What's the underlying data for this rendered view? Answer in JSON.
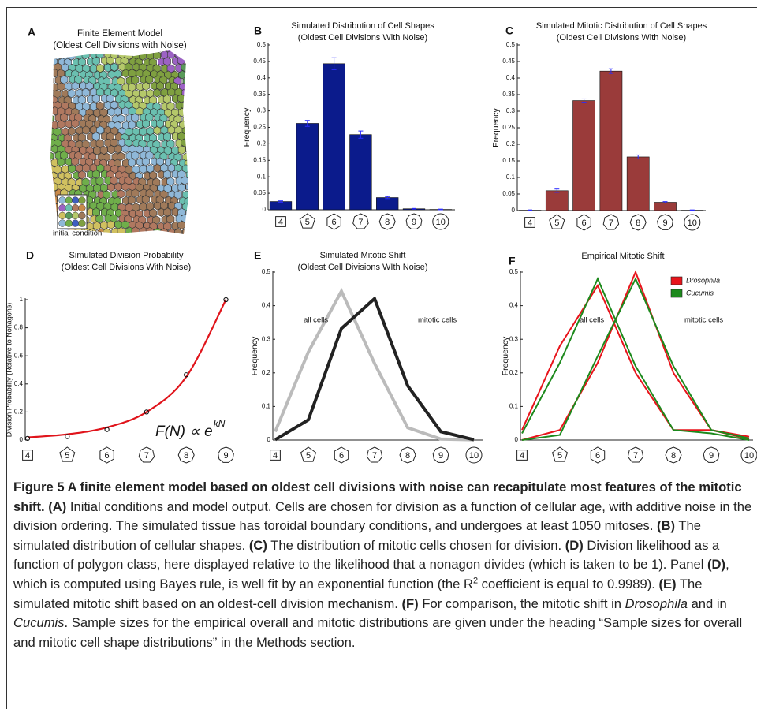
{
  "panel_a": {
    "label": "A",
    "title": "Finite Element Model",
    "subtitle": "(Oldest Cell Divisions with Noise)",
    "inset_label": "initial condition"
  },
  "chart_data": [
    {
      "type": "bar",
      "label": "B",
      "title": "Simulated Distribution of Cell Shapes",
      "subtitle": "(Oldest Cell Divisions With Noise)",
      "y_label": "Frequency",
      "categories": [
        "4",
        "5",
        "6",
        "7",
        "8",
        "9",
        "10"
      ],
      "values": [
        0.025,
        0.262,
        0.443,
        0.228,
        0.037,
        0.003,
        0.001
      ],
      "errors": [
        0.002,
        0.009,
        0.018,
        0.011,
        0.003,
        0.001,
        0.001
      ],
      "color": "#0b1b8c",
      "error_color": "#2b2bff",
      "ylim": [
        0,
        0.5
      ],
      "yticks": [
        0,
        0.05,
        0.1,
        0.15,
        0.2,
        0.25,
        0.3,
        0.35,
        0.4,
        0.45,
        0.5
      ]
    },
    {
      "type": "bar",
      "label": "C",
      "title": "Simulated Mitotic Distribution of Cell Shapes",
      "subtitle": "(Oldest Cell Divisions With Noise)",
      "y_label": "Frequency",
      "categories": [
        "4",
        "5",
        "6",
        "7",
        "8",
        "9",
        "10"
      ],
      "values": [
        0.001,
        0.06,
        0.332,
        0.421,
        0.162,
        0.025,
        0.001
      ],
      "errors": [
        0.001,
        0.005,
        0.005,
        0.007,
        0.006,
        0.002,
        0.001
      ],
      "color": "#9a3b3a",
      "error_color": "#2b2bff",
      "ylim": [
        0,
        0.5
      ],
      "yticks": [
        0,
        0.05,
        0.1,
        0.15,
        0.2,
        0.25,
        0.3,
        0.35,
        0.4,
        0.45,
        0.5
      ]
    },
    {
      "type": "fit",
      "label": "D",
      "title": "Simulated Division Probability",
      "subtitle": "(Oldest Cell Divisions With Noise)",
      "y_label": "Division Probability (Relative to Nonagons)",
      "categories": [
        "4",
        "5",
        "6",
        "7",
        "8",
        "9"
      ],
      "values": [
        0.012,
        0.025,
        0.075,
        0.2,
        0.465,
        1
      ],
      "fit": [
        0.019,
        0.041,
        0.09,
        0.2,
        0.45,
        1
      ],
      "fit_color": "#e0141b",
      "annotation": "F(N) ∝ e",
      "annotation_superscript": "kN",
      "ylim": [
        0,
        1
      ],
      "yticks": [
        0,
        0.2,
        0.4,
        0.6,
        0.8,
        1
      ]
    },
    {
      "type": "line",
      "label": "E",
      "title": "Simulated Mitotic Shift",
      "subtitle": "(Oldest Cell Divisions WIth Noise)",
      "y_label": "Frequency",
      "categories": [
        "4",
        "5",
        "6",
        "7",
        "8",
        "9",
        "10"
      ],
      "series": [
        {
          "name": "all cells",
          "color": "#bbbbbb",
          "values": [
            0.025,
            0.262,
            0.443,
            0.228,
            0.037,
            0.003,
            0.001
          ]
        },
        {
          "name": "mitotic cells",
          "color": "#222222",
          "values": [
            0.001,
            0.06,
            0.332,
            0.421,
            0.162,
            0.025,
            0.001
          ]
        }
      ],
      "ylim": [
        0,
        0.5
      ],
      "yticks": [
        0,
        0.1,
        0.2,
        0.3,
        0.4,
        0.5
      ]
    },
    {
      "type": "line",
      "label": "F",
      "title": "Empirical Mitotic Shift",
      "y_label": "Frequency",
      "annotations": [
        "all cells",
        "mitotic cells"
      ],
      "categories": [
        "4",
        "5",
        "6",
        "7",
        "8",
        "9",
        "10"
      ],
      "series": [
        {
          "name": "Drosophila",
          "color": "#e8141b",
          "values": [
            0.03,
            0.28,
            0.46,
            0.2,
            0.03,
            0.03,
            0.01
          ],
          "mitotic_values": [
            0,
            0.03,
            0.23,
            0.5,
            0.2,
            0.03,
            0.003
          ]
        },
        {
          "name": "Cucumis",
          "color": "#1d8a1d",
          "values": [
            0.02,
            0.23,
            0.48,
            0.22,
            0.03,
            0.02,
            0
          ],
          "mitotic_values": [
            0,
            0.015,
            0.25,
            0.48,
            0.22,
            0.03,
            0.005
          ]
        }
      ],
      "ylim": [
        0,
        0.5
      ],
      "yticks": [
        0,
        0.1,
        0.2,
        0.3,
        0.4,
        0.5
      ],
      "legend": "upper right"
    }
  ],
  "caption": [
    {
      "text": "Figure 5 A finite element model based on oldest cell divisions with noise can recapitulate most features of the mitotic shift.",
      "style": "bold"
    },
    {
      "text": " ",
      "style": "normal"
    },
    {
      "text": "(A)",
      "style": "bold"
    },
    {
      "text": " Initial conditions and model output. Cells are chosen for division as a function of cellular age, with additive noise in the division ordering. The simulated tissue has toroidal boundary conditions, and undergoes at least 1050 mitoses. ",
      "style": "normal"
    },
    {
      "text": "(B)",
      "style": "bold"
    },
    {
      "text": " The simulated distribution of cellular shapes. ",
      "style": "normal"
    },
    {
      "text": "(C)",
      "style": "bold"
    },
    {
      "text": " The distribution of mitotic cells chosen for division. ",
      "style": "normal"
    },
    {
      "text": "(D)",
      "style": "bold"
    },
    {
      "text": " Division likelihood as a function of polygon class, here displayed relative to the likelihood that a nonagon divides (which is taken to be 1). Panel ",
      "style": "normal"
    },
    {
      "text": "(D)",
      "style": "bold"
    },
    {
      "text": ", which is computed using Bayes rule, is well fit by an exponential function (the R",
      "style": "normal"
    },
    {
      "text": "2",
      "style": "sup"
    },
    {
      "text": " coefficient is equal to 0.9989). ",
      "style": "normal"
    },
    {
      "text": "(E)",
      "style": "bold"
    },
    {
      "text": " The simulated mitotic shift based on an oldest-cell division mechanism. ",
      "style": "normal"
    },
    {
      "text": "(F)",
      "style": "bold"
    },
    {
      "text": " For comparison, the mitotic shift in ",
      "style": "normal"
    },
    {
      "text": "Drosophila",
      "style": "italic"
    },
    {
      "text": " and in ",
      "style": "normal"
    },
    {
      "text": "Cucumis",
      "style": "italic"
    },
    {
      "text": ". Sample sizes for the empirical overall and mitotic distributions are given under the heading “Sample sizes for overall and mitotic cell shape distributions” in the Methods section.",
      "style": "normal"
    }
  ]
}
